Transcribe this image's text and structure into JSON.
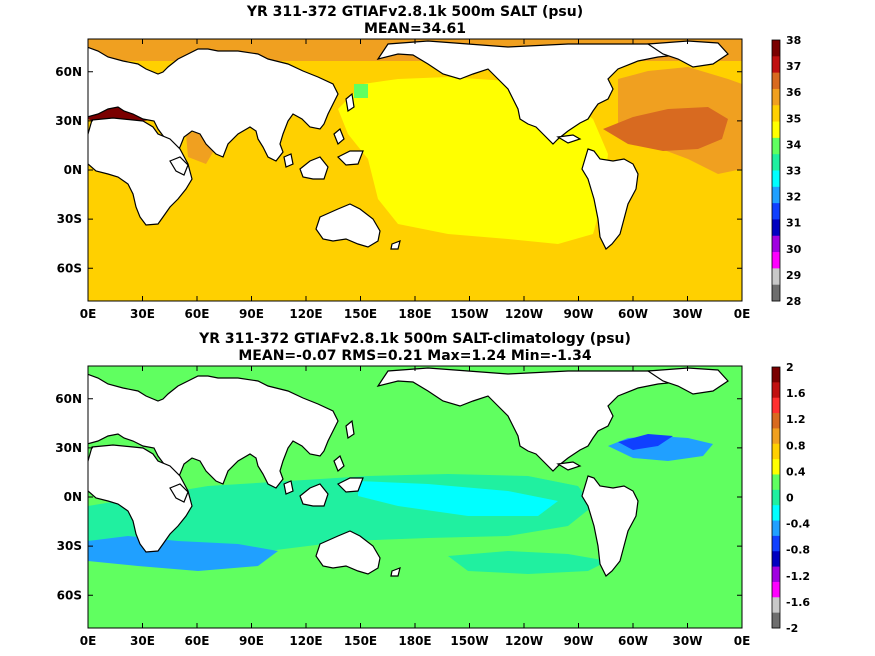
{
  "chart_data": [
    {
      "type": "heatmap",
      "title": "YR 311-372 GTIAFv2.8.1k 500m SALT (psu)",
      "subtitle": "MEAN=34.61",
      "x_tick_labels": [
        "0E",
        "30E",
        "60E",
        "90E",
        "120E",
        "150E",
        "180E",
        "150W",
        "120W",
        "90W",
        "60W",
        "30W",
        "0E"
      ],
      "y_tick_labels": [
        "60N",
        "30N",
        "0N",
        "30S",
        "60S"
      ],
      "y_tick_values": [
        60,
        30,
        0,
        -30,
        -60
      ],
      "xlim": [
        0,
        360
      ],
      "ylim": [
        -80,
        80
      ],
      "colorbar": {
        "levels": [
          "38",
          "37",
          "36",
          "35",
          "34",
          "33",
          "32",
          "31",
          "30",
          "29",
          "28"
        ],
        "colors": [
          "#7a0000",
          "#c01010",
          "#d86a20",
          "#f0a020",
          "#ffd000",
          "#ffff00",
          "#60ff60",
          "#20f0a0",
          "#00ffff",
          "#20a0ff",
          "#1040ff",
          "#0000c0",
          "#a000e0",
          "#ff00ff",
          "#c8c8c8",
          "#6e6e6e"
        ]
      },
      "regions": [
        {
          "name": "background",
          "color": "#ffd000"
        },
        {
          "name": "pacific-core",
          "color": "#ffff00"
        },
        {
          "name": "north-atlantic",
          "color": "#f0a020"
        },
        {
          "name": "subtropical-atlantic",
          "color": "#d86a20"
        },
        {
          "name": "arabian-sea",
          "color": "#f0a020"
        },
        {
          "name": "mediterranean",
          "color": "#7a0000"
        },
        {
          "name": "okhotsk",
          "color": "#60ff60"
        }
      ]
    },
    {
      "type": "heatmap",
      "title": "YR 311-372 GTIAFv2.8.1k 500m SALT-climatology (psu)",
      "subtitle": "MEAN=-0.07   RMS=0.21   Max=1.24   Min=-1.34",
      "x_tick_labels": [
        "0E",
        "30E",
        "60E",
        "90E",
        "120E",
        "150E",
        "180E",
        "150W",
        "120W",
        "90W",
        "60W",
        "30W",
        "0E"
      ],
      "y_tick_labels": [
        "60N",
        "30N",
        "0N",
        "30S",
        "60S"
      ],
      "y_tick_values": [
        60,
        30,
        0,
        -30,
        -60
      ],
      "xlim": [
        0,
        360
      ],
      "ylim": [
        -80,
        80
      ],
      "colorbar": {
        "levels": [
          "2",
          "1.6",
          "1.2",
          "0.8",
          "0.4",
          "0",
          "-0.4",
          "-0.8",
          "-1.2",
          "-1.6",
          "-2"
        ],
        "colors": [
          "#7a0000",
          "#c01010",
          "#ff3030",
          "#d86a20",
          "#f0a020",
          "#ffd000",
          "#ffff00",
          "#60ff60",
          "#20f0a0",
          "#00ffff",
          "#20a0ff",
          "#1040ff",
          "#0000c0",
          "#a000e0",
          "#ff00ff",
          "#c8c8c8",
          "#6e6e6e"
        ]
      },
      "regions": [
        {
          "name": "background",
          "color": "#60ff60"
        },
        {
          "name": "indian-pacific-fresh",
          "color": "#20f0a0"
        },
        {
          "name": "equatorial-pacific",
          "color": "#00ffff"
        },
        {
          "name": "southern-indian",
          "color": "#20a0ff"
        },
        {
          "name": "gulf-stream",
          "color": "#1040ff"
        },
        {
          "name": "north-atlantic-fresh",
          "color": "#20a0ff"
        },
        {
          "name": "southern-pacific-fresh",
          "color": "#20f0a0"
        }
      ]
    }
  ]
}
